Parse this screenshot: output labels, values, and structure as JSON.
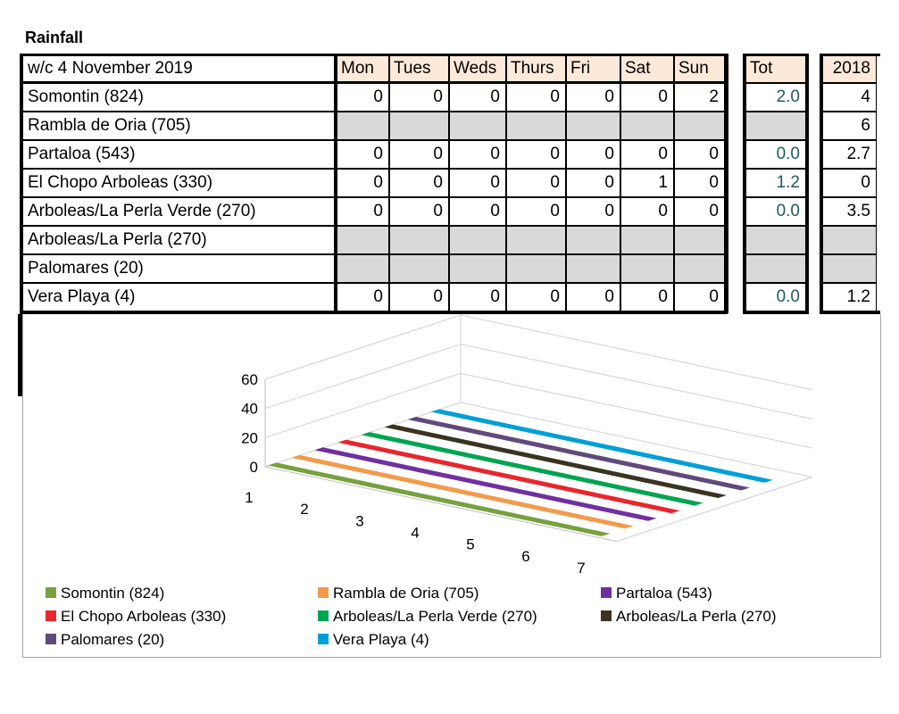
{
  "title": "Rainfall",
  "table": {
    "week_label": "w/c 4 November 2019",
    "days": [
      "Mon",
      "Tues",
      "Weds",
      "Thurs",
      "Fri",
      "Sat",
      "Sun"
    ],
    "tot_header": "Tot",
    "year_header": "2018",
    "rows": [
      {
        "name": "Somontin (824)",
        "values": [
          "0",
          "0",
          "0",
          "0",
          "0",
          "0",
          "2"
        ],
        "tot": "2.0",
        "prev": "4"
      },
      {
        "name": "Rambla de Oria (705)",
        "values": [
          "",
          "",
          "",
          "",
          "",
          "",
          ""
        ],
        "tot": "",
        "prev": "6"
      },
      {
        "name": "Partaloa (543)",
        "values": [
          "0",
          "0",
          "0",
          "0",
          "0",
          "0",
          "0"
        ],
        "tot": "0.0",
        "prev": "2.7"
      },
      {
        "name": "El Chopo Arboleas (330)",
        "values": [
          "0",
          "0",
          "0",
          "0",
          "0",
          "1",
          "0"
        ],
        "tot": "1.2",
        "prev": "0"
      },
      {
        "name": "Arboleas/La Perla Verde (270)",
        "values": [
          "0",
          "0",
          "0",
          "0",
          "0",
          "0",
          "0"
        ],
        "tot": "0.0",
        "prev": "3.5"
      },
      {
        "name": "Arboleas/La Perla (270)",
        "values": [
          "",
          "",
          "",
          "",
          "",
          "",
          ""
        ],
        "tot": "",
        "prev": ""
      },
      {
        "name": "Palomares (20)",
        "values": [
          "",
          "",
          "",
          "",
          "",
          "",
          ""
        ],
        "tot": "",
        "prev": ""
      },
      {
        "name": "Vera Playa (4)",
        "values": [
          "0",
          "0",
          "0",
          "0",
          "0",
          "0",
          "0"
        ],
        "tot": "0.0",
        "prev": "1.2"
      }
    ]
  },
  "chart_data": {
    "type": "area",
    "title": "",
    "xlabel": "",
    "ylabel": "",
    "x": [
      1,
      2,
      3,
      4,
      5,
      6,
      7
    ],
    "ylim": [
      0,
      60
    ],
    "yticks": [
      0,
      20,
      40,
      60
    ],
    "grid": true,
    "legend_position": "bottom",
    "series": [
      {
        "name": "Somontin (824)",
        "color": "#77a03f",
        "values": [
          0,
          0,
          0,
          0,
          0,
          0,
          2
        ]
      },
      {
        "name": "Rambla de Oria (705)",
        "color": "#f29a4d",
        "values": [
          0,
          0,
          0,
          0,
          0,
          0,
          0
        ]
      },
      {
        "name": "Partaloa (543)",
        "color": "#7030a0",
        "values": [
          0,
          0,
          0,
          0,
          0,
          0,
          0
        ]
      },
      {
        "name": "El Chopo Arboleas (330)",
        "color": "#e8262d",
        "values": [
          0,
          0,
          0,
          0,
          0,
          1,
          0
        ]
      },
      {
        "name": "Arboleas/La Perla Verde (270)",
        "color": "#00a550",
        "values": [
          0,
          0,
          0,
          0,
          0,
          0,
          0
        ]
      },
      {
        "name": "Arboleas/La Perla (270)",
        "color": "#3b3322",
        "values": [
          0,
          0,
          0,
          0,
          0,
          0,
          0
        ]
      },
      {
        "name": "Palomares (20)",
        "color": "#604a7b",
        "values": [
          0,
          0,
          0,
          0,
          0,
          0,
          0
        ]
      },
      {
        "name": "Vera Playa (4)",
        "color": "#00a0d6",
        "values": [
          0,
          0,
          0,
          0,
          0,
          0,
          0
        ]
      }
    ]
  }
}
